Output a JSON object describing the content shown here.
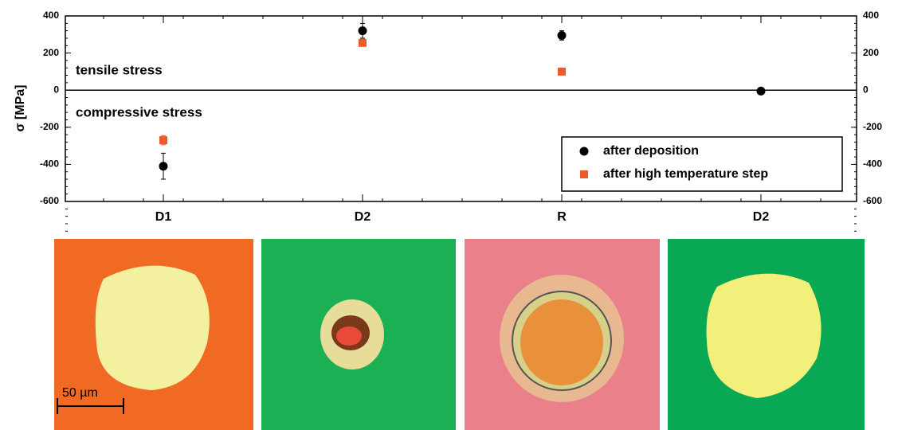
{
  "chart_data": {
    "type": "scatter",
    "y_label": "σ [MPa]",
    "annotations": [
      "tensile stress",
      "compressive stress"
    ],
    "categories": [
      "D1",
      "D2",
      "R",
      "D2"
    ],
    "series": [
      {
        "name": "after deposition",
        "color": "#000000",
        "marker": "circle",
        "values": [
          -410,
          320,
          295,
          -5
        ],
        "errors": [
          70,
          40,
          25,
          10
        ]
      },
      {
        "name": "after high temperature step",
        "color": "#f05a28",
        "marker": "square",
        "values": [
          -270,
          255,
          100,
          null
        ],
        "errors": [
          25,
          15,
          10,
          null
        ]
      }
    ],
    "ylim": [
      -600,
      400
    ],
    "yticks": [
      -600,
      -400,
      -200,
      0,
      200,
      400
    ],
    "y2lim": [
      -600,
      400
    ],
    "y2ticks": [
      -600,
      -400,
      -200,
      0,
      200,
      400
    ],
    "legend": "lower right"
  },
  "images": {
    "scale_bar": "50 µm"
  }
}
